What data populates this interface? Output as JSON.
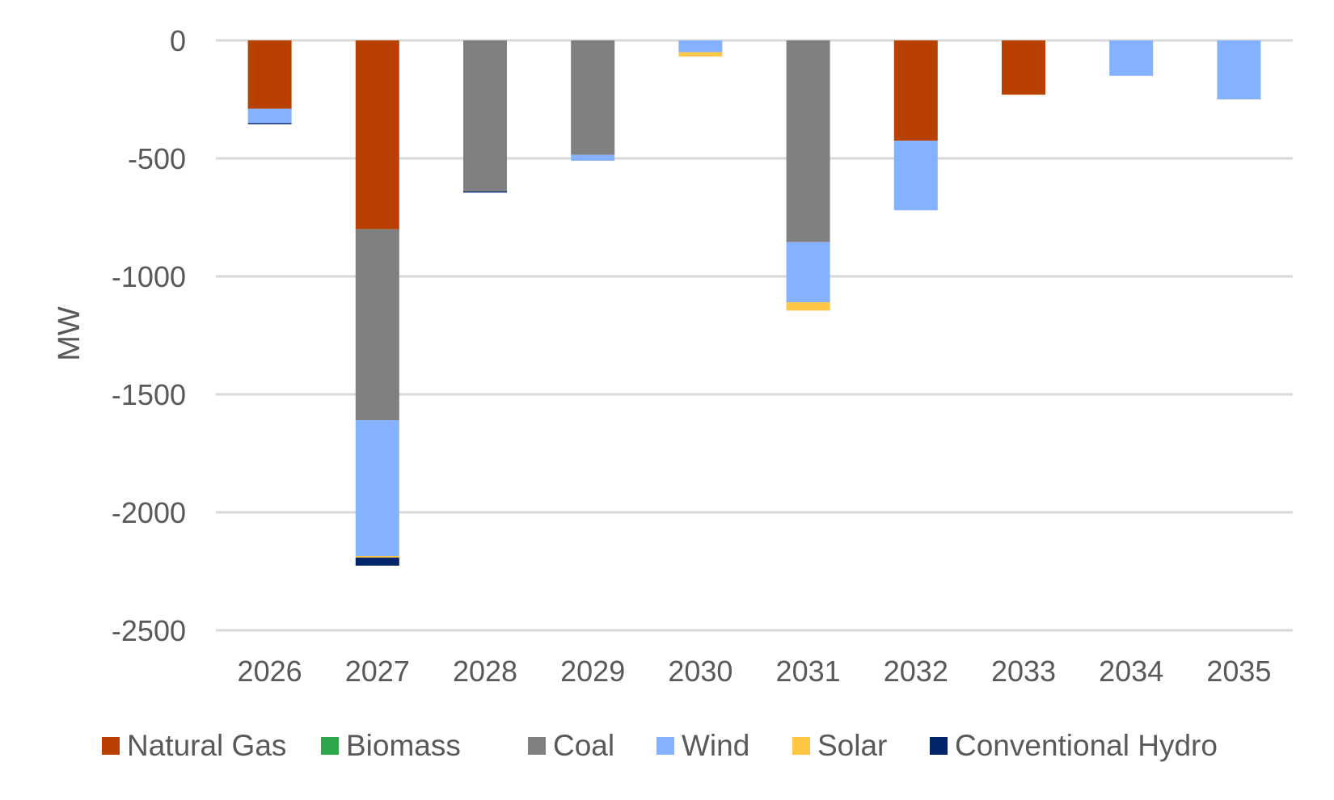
{
  "chart_data": {
    "type": "bar",
    "stacked": true,
    "title": "",
    "xlabel": "",
    "ylabel": "MW",
    "ylim": [
      -2500,
      0
    ],
    "yticks": [
      0,
      -500,
      -1000,
      -1500,
      -2000,
      -2500
    ],
    "ytick_labels": [
      "0",
      "-500",
      "-1000",
      "-1500",
      "-2000",
      "-2500"
    ],
    "grid": "horizontal",
    "legend_position": "bottom",
    "categories": [
      "2026",
      "2027",
      "2028",
      "2029",
      "2030",
      "2031",
      "2032",
      "2033",
      "2034",
      "2035"
    ],
    "series": [
      {
        "name": "Natural Gas",
        "color": "#B84000",
        "values": [
          -290,
          -800,
          0,
          0,
          0,
          0,
          -425,
          -230,
          0,
          0
        ]
      },
      {
        "name": "Biomass",
        "color": "#2EA84A",
        "values": [
          0,
          0,
          0,
          0,
          0,
          0,
          0,
          0,
          0,
          0
        ]
      },
      {
        "name": "Coal",
        "color": "#808080",
        "values": [
          0,
          -810,
          -640,
          -485,
          0,
          -855,
          0,
          0,
          0,
          0
        ]
      },
      {
        "name": "Wind",
        "color": "#86B1FF",
        "values": [
          -60,
          -575,
          0,
          -25,
          -50,
          -255,
          -295,
          0,
          -150,
          -250
        ]
      },
      {
        "name": "Solar",
        "color": "#FFC545",
        "values": [
          0,
          -7,
          0,
          0,
          -18,
          -35,
          0,
          0,
          0,
          0
        ]
      },
      {
        "name": "Conventional Hydro",
        "color": "#00256B",
        "values": [
          -5,
          -34,
          -5,
          0,
          0,
          0,
          0,
          0,
          0,
          0
        ]
      }
    ]
  }
}
